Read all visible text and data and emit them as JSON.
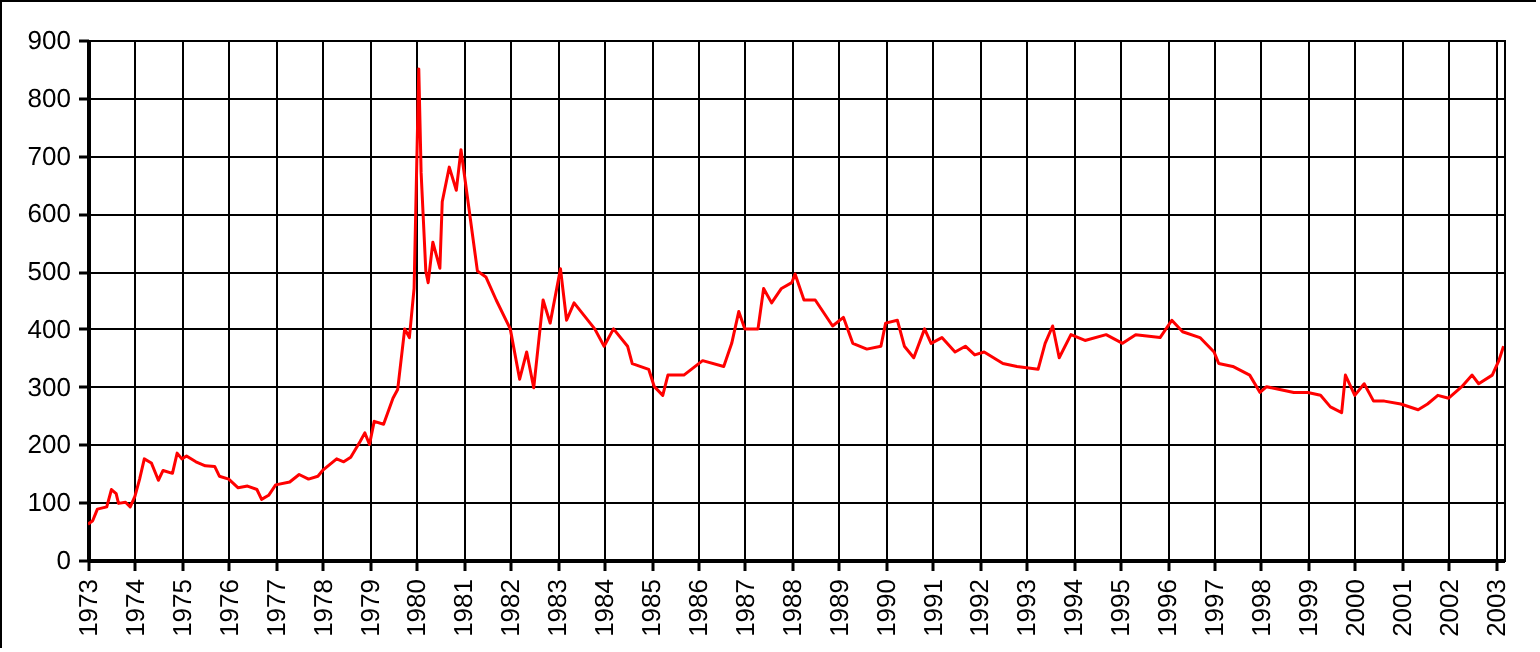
{
  "chart_data": {
    "type": "line",
    "x": [
      1973.0,
      1973.1,
      1973.2,
      1973.4,
      1973.5,
      1973.6,
      1973.65,
      1973.8,
      1973.9,
      1974.0,
      1974.1,
      1974.2,
      1974.35,
      1974.5,
      1974.6,
      1974.8,
      1974.9,
      1975.0,
      1975.1,
      1975.3,
      1975.5,
      1975.7,
      1975.8,
      1976.0,
      1976.2,
      1976.4,
      1976.6,
      1976.7,
      1976.85,
      1977.0,
      1977.3,
      1977.5,
      1977.7,
      1977.9,
      1978.0,
      1978.3,
      1978.45,
      1978.6,
      1978.8,
      1978.9,
      1979.0,
      1979.1,
      1979.3,
      1979.5,
      1979.6,
      1979.75,
      1979.85,
      1979.95,
      1980.05,
      1980.1,
      1980.2,
      1980.25,
      1980.35,
      1980.5,
      1980.55,
      1980.7,
      1980.85,
      1980.95,
      1981.1,
      1981.2,
      1981.3,
      1981.48,
      1981.7,
      1982.0,
      1982.2,
      1982.35,
      1982.5,
      1982.7,
      1982.85,
      1983.07,
      1983.2,
      1983.36,
      1983.8,
      1984.0,
      1984.2,
      1984.5,
      1984.6,
      1984.95,
      1985.07,
      1985.25,
      1985.36,
      1985.7,
      1986.1,
      1986.55,
      1986.72,
      1986.87,
      1987.0,
      1987.28,
      1987.4,
      1987.57,
      1987.78,
      1988.0,
      1988.07,
      1988.26,
      1988.5,
      1988.87,
      1989.1,
      1989.3,
      1989.6,
      1989.9,
      1990.0,
      1990.25,
      1990.4,
      1990.6,
      1990.83,
      1990.97,
      1991.2,
      1991.48,
      1991.7,
      1991.9,
      1992.1,
      1992.5,
      1992.8,
      1993.25,
      1993.4,
      1993.56,
      1993.7,
      1993.95,
      1994.25,
      1994.7,
      1995.05,
      1995.33,
      1995.85,
      1996.1,
      1996.33,
      1996.7,
      1997.0,
      1997.1,
      1997.4,
      1997.76,
      1997.98,
      1998.12,
      1998.4,
      1998.7,
      1999.0,
      1999.27,
      1999.48,
      1999.72,
      1999.8,
      2000.0,
      2000.2,
      2000.4,
      2000.63,
      2000.98,
      2001.35,
      2001.55,
      2001.77,
      2002.0,
      2002.28,
      2002.5,
      2002.64,
      2002.93,
      2003.07,
      2003.17
    ],
    "series": [
      {
        "color": "#ff0000",
        "values": [
          62,
          68,
          88,
          92,
          122,
          115,
          98,
          100,
          92,
          110,
          140,
          175,
          168,
          138,
          155,
          150,
          185,
          175,
          180,
          170,
          163,
          162,
          145,
          140,
          125,
          128,
          122,
          105,
          112,
          130,
          135,
          148,
          140,
          145,
          155,
          175,
          170,
          178,
          205,
          220,
          200,
          240,
          235,
          280,
          295,
          400,
          385,
          470,
          850,
          670,
          500,
          480,
          550,
          505,
          620,
          680,
          640,
          710,
          620,
          560,
          500,
          490,
          450,
          400,
          313,
          360,
          298,
          450,
          410,
          504,
          415,
          445,
          400,
          370,
          400,
          370,
          340,
          330,
          300,
          285,
          320,
          320,
          345,
          335,
          375,
          430,
          400,
          400,
          470,
          445,
          470,
          480,
          495,
          450,
          450,
          405,
          420,
          375,
          365,
          370,
          410,
          415,
          370,
          350,
          400,
          375,
          385,
          360,
          370,
          355,
          360,
          340,
          335,
          330,
          375,
          405,
          350,
          390,
          380,
          390,
          375,
          390,
          385,
          415,
          395,
          385,
          360,
          340,
          335,
          320,
          290,
          300,
          295,
          290,
          290,
          285,
          265,
          255,
          320,
          285,
          305,
          275,
          275,
          270,
          260,
          270,
          285,
          280,
          300,
          320,
          305,
          320,
          345,
          370
        ]
      }
    ],
    "xlim": [
      1973,
      2003.18
    ],
    "xticks": [
      1973,
      1974,
      1975,
      1976,
      1977,
      1978,
      1979,
      1980,
      1981,
      1982,
      1983,
      1984,
      1985,
      1986,
      1987,
      1988,
      1989,
      1990,
      1991,
      1992,
      1993,
      1994,
      1995,
      1996,
      1997,
      1998,
      1999,
      2000,
      2001,
      2002,
      2003
    ],
    "ylim": [
      0,
      900
    ],
    "yticks": [
      0,
      100,
      200,
      300,
      400,
      500,
      600,
      700,
      800,
      900
    ],
    "grid": true,
    "marker": "none",
    "line_style": "solid"
  }
}
